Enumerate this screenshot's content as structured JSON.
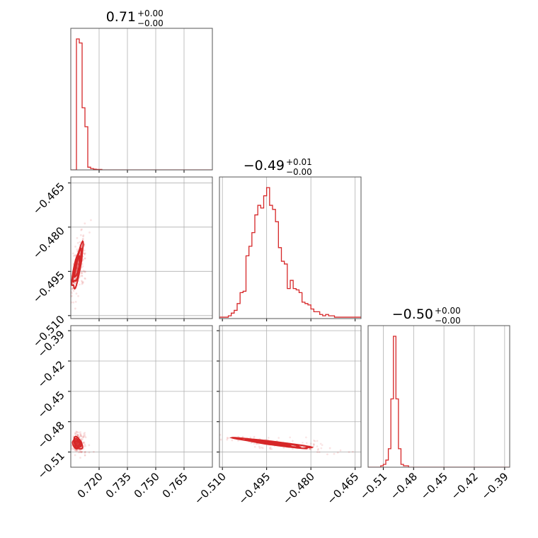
{
  "chart_data": {
    "type": "corner",
    "colors": {
      "series": "#d62728",
      "grid": "#b0b0b0",
      "frame": "#555555"
    },
    "params": [
      {
        "range": [
          0.705,
          0.78
        ],
        "ticks": [
          0.72,
          0.735,
          0.75,
          0.765
        ],
        "tick_labels": [
          "0.720",
          "0.735",
          "0.750",
          "0.765"
        ],
        "title": {
          "main": "0.71",
          "plus": "+0.00",
          "minus": "−0.00"
        },
        "hist": {
          "start": 0.705,
          "width": 0.0015,
          "counts": [
            0,
            0,
            0.97,
            0.94,
            0.46,
            0.32,
            0.02,
            0.01,
            0.005,
            0.003,
            0.003,
            0,
            0,
            0,
            0,
            0,
            0,
            0,
            0,
            0,
            0,
            0,
            0,
            0,
            0,
            0,
            0,
            0,
            0,
            0,
            0,
            0,
            0,
            0,
            0,
            0,
            0,
            0,
            0,
            0,
            0,
            0,
            0,
            0,
            0,
            0,
            0,
            0,
            0,
            0
          ]
        }
      },
      {
        "range": [
          -0.511,
          -0.463
        ],
        "ticks": [
          -0.51,
          -0.495,
          -0.48,
          -0.465
        ],
        "tick_labels": [
          "−0.510",
          "−0.495",
          "−0.480",
          "−0.465"
        ],
        "title": {
          "main": "−0.49",
          "plus": "+0.01",
          "minus": "−0.00"
        },
        "hist": {
          "start": -0.511,
          "width": 0.001,
          "counts": [
            0.01,
            0.01,
            0.01,
            0.02,
            0.04,
            0.06,
            0.11,
            0.19,
            0.2,
            0.46,
            0.53,
            0.63,
            0.76,
            0.83,
            0.81,
            0.9,
            0.96,
            0.83,
            0.8,
            0.71,
            0.52,
            0.42,
            0.4,
            0.22,
            0.28,
            0.22,
            0.21,
            0.19,
            0.12,
            0.11,
            0.1,
            0.07,
            0.05,
            0.05,
            0.03,
            0.02,
            0.03,
            0.02,
            0.02,
            0.01,
            0.01,
            0.01,
            0.01,
            0.01,
            0.01,
            0.01,
            0.01,
            0.01
          ]
        }
      },
      {
        "range": [
          -0.525,
          -0.385
        ],
        "ticks": [
          -0.51,
          -0.48,
          -0.45,
          -0.42,
          -0.39
        ],
        "tick_labels": [
          "−0.51",
          "−0.48",
          "−0.45",
          "−0.42",
          "−0.39"
        ],
        "title": {
          "main": "−0.50",
          "plus": "+0.00",
          "minus": "−0.00"
        },
        "hist": {
          "start": -0.525,
          "width": 0.0025,
          "counts": [
            0,
            0,
            0,
            0,
            0,
            0.01,
            0.02,
            0.05,
            0.13,
            0.48,
            0.92,
            0.48,
            0.13,
            0.02,
            0.01,
            0.01,
            0,
            0,
            0,
            0,
            0,
            0,
            0,
            0,
            0,
            0,
            0,
            0,
            0,
            0,
            0,
            0,
            0,
            0,
            0,
            0,
            0,
            0,
            0,
            0,
            0,
            0,
            0,
            0,
            0,
            0,
            0,
            0,
            0,
            0,
            0,
            0,
            0,
            0,
            0,
            0
          ]
        }
      }
    ],
    "pairs": [
      {
        "x_param": 0,
        "y_param": 1,
        "mean": [
          0.7085,
          -0.4935
        ],
        "std": [
          0.0013,
          0.0034
        ],
        "corr": 0.8,
        "contour_levels": [
          1.0,
          1.6,
          2.2
        ],
        "spread": [
          0.003,
          0.006
        ]
      },
      {
        "x_param": 0,
        "y_param": 2,
        "mean": [
          0.7085,
          -0.5015
        ],
        "std": [
          0.0012,
          0.0028
        ],
        "corr": -0.3,
        "contour_levels": [
          0.9,
          1.5,
          2.1
        ],
        "spread": [
          0.003,
          0.012
        ]
      },
      {
        "x_param": 1,
        "y_param": 2,
        "mean": [
          -0.492,
          -0.5015
        ],
        "std": [
          0.0055,
          0.0022
        ],
        "corr": -0.94,
        "contour_levels": [
          0.9,
          1.6,
          2.3
        ],
        "spread": [
          0.012,
          0.006
        ]
      }
    ],
    "grid": true
  }
}
